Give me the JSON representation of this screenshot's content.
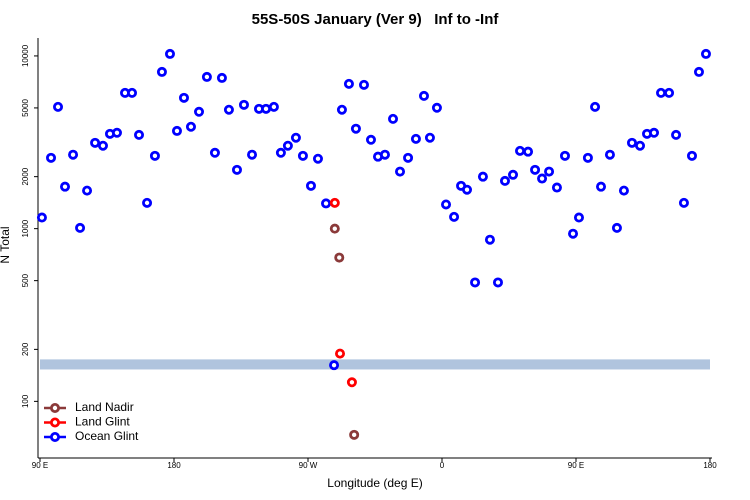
{
  "chart_data": {
    "type": "scatter",
    "title": "55S-50S January (Ver 9)   Inf to -Inf",
    "xlabel": "Longitude (deg E)",
    "ylabel": "N Total",
    "xlim": [
      90,
      540
    ],
    "ylim": [
      47,
      12700
    ],
    "log_y": true,
    "xticks": [
      {
        "value": 90,
        "label": "90 E"
      },
      {
        "value": 180,
        "label": "180"
      },
      {
        "value": 270,
        "label": "90 W"
      },
      {
        "value": 360,
        "label": "0"
      },
      {
        "value": 450,
        "label": "90 E"
      },
      {
        "value": 540,
        "label": "180"
      }
    ],
    "yticks": [
      100,
      200,
      500,
      1000,
      2000,
      5000,
      10000
    ],
    "band": {
      "range": [
        153,
        175
      ],
      "color": "#b0c4de"
    },
    "legend": "bottom-left",
    "series": [
      {
        "name": "Land Nadir",
        "color": "#8b3a3a",
        "x": [
          288,
          291,
          301
        ],
        "values": [
          1000,
          680,
          64
        ]
      },
      {
        "name": "Land Glint",
        "color": "#ff0000",
        "x": [
          288,
          291.5,
          299.5
        ],
        "values": [
          1410,
          189,
          129
        ]
      },
      {
        "name": "Ocean Glint",
        "color": "#0000ff",
        "x": [
          91.3,
          97.4,
          102.1,
          106.8,
          112.2,
          116.9,
          121.6,
          127,
          132.3,
          137,
          141.7,
          147.1,
          151.8,
          156.5,
          161.9,
          167.2,
          171.9,
          177.3,
          182,
          186.7,
          191.4,
          196.8,
          202.1,
          207.5,
          212.2,
          216.9,
          222.3,
          227,
          232.4,
          237.1,
          241.8,
          247.1,
          251.8,
          256.5,
          261.9,
          266.6,
          272,
          276.7,
          282.1,
          287.5,
          292.8,
          297.5,
          302.2,
          307.6,
          312.3,
          317,
          321.7,
          327.1,
          331.8,
          337.2,
          342.5,
          347.9,
          351.9,
          356.6,
          362.7,
          368.1,
          372.8,
          376.8,
          382.2,
          387.5,
          392.2,
          397.6,
          402.3,
          407.7,
          412.4,
          417.8,
          422.5,
          427.2,
          431.9,
          437.2,
          442.6,
          448,
          452,
          458,
          462.8,
          466.8,
          472.8,
          477.5,
          482.2,
          487.6,
          493,
          497.7,
          502.4,
          507.1,
          512.5,
          517.2,
          522.5,
          527.9,
          532.6,
          537.3
        ],
        "values": [
          1160,
          2570,
          5070,
          1750,
          2680,
          1010,
          1660,
          3140,
          3020,
          3540,
          3590,
          6110,
          6110,
          3490,
          1410,
          2640,
          8080,
          10270,
          3680,
          5720,
          3890,
          4750,
          7560,
          2750,
          7460,
          4880,
          2190,
          5210,
          2680,
          4940,
          4940,
          5070,
          2750,
          3020,
          3360,
          2640,
          1770,
          2540,
          1400,
          162,
          4880,
          6890,
          3790,
          6800,
          3270,
          2610,
          2680,
          4320,
          2140,
          2570,
          3310,
          5870,
          3360,
          5010,
          1380,
          1170,
          1770,
          1680,
          488,
          2000,
          863,
          488,
          1890,
          2050,
          2820,
          2790,
          2190,
          1950,
          2140,
          1730,
          2640,
          935,
          1160,
          2570,
          5070,
          1750,
          2680,
          1010,
          1660,
          3140,
          3020,
          3540,
          3590,
          6110,
          6110,
          3490,
          1410,
          2640,
          8080,
          10270
        ]
      }
    ]
  }
}
